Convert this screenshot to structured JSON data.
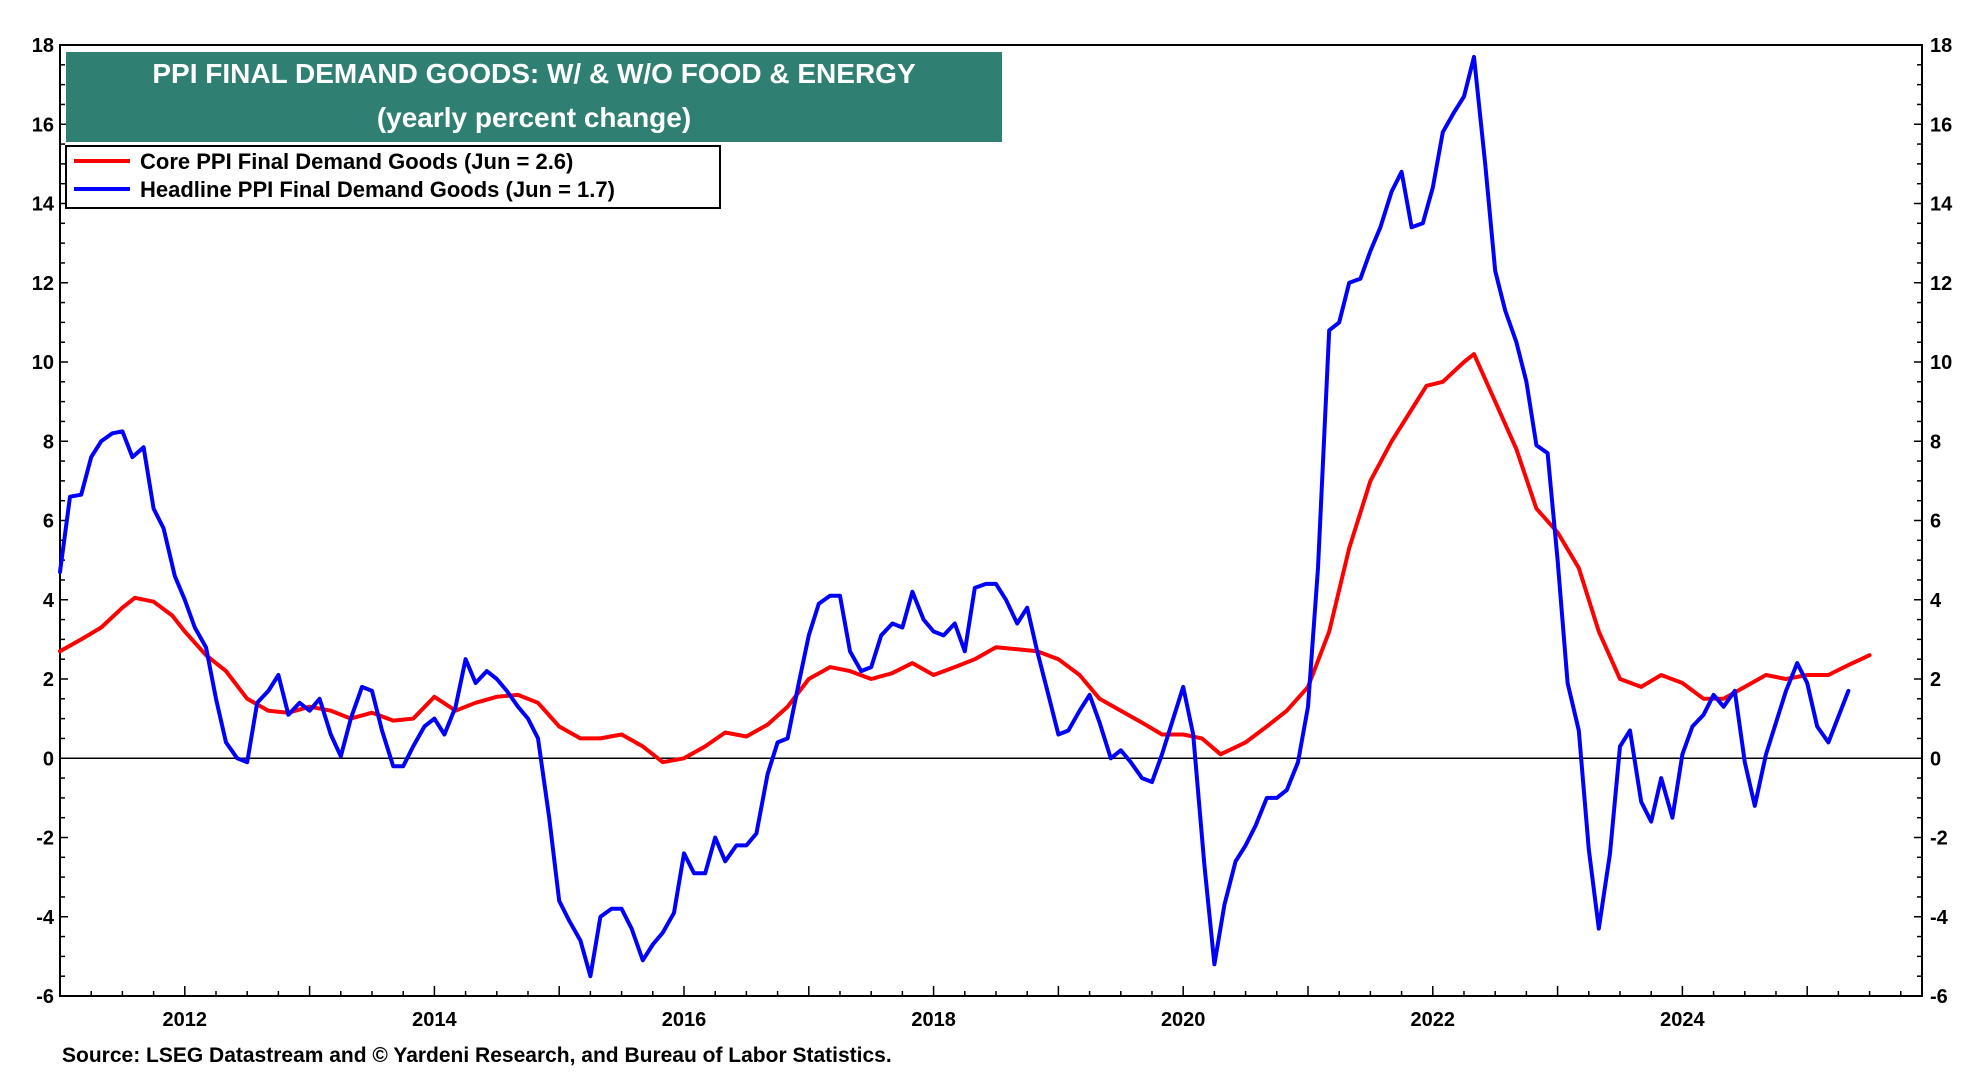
{
  "chart_data": {
    "type": "line",
    "title": "PPI FINAL DEMAND GOODS: W/ & W/O FOOD & ENERGY",
    "subtitle": "(yearly percent change)",
    "xlabel": "",
    "ylabel": "",
    "x_range": [
      2011.0,
      2025.92
    ],
    "ylim": [
      -6,
      18
    ],
    "y_ticks": [
      -6,
      -4,
      -2,
      0,
      2,
      4,
      6,
      8,
      10,
      12,
      14,
      16,
      18
    ],
    "y_tick_labels": [
      "-6",
      "-4",
      "-2",
      "0",
      "2",
      "4",
      "6",
      "8",
      "10",
      "12",
      "14",
      "16",
      "18"
    ],
    "x_ticks": [
      2012,
      2014,
      2016,
      2018,
      2020,
      2022,
      2024
    ],
    "x_tick_labels": [
      "2012",
      "2014",
      "2016",
      "2018",
      "2020",
      "2022",
      "2024"
    ],
    "zero_line": true,
    "grid": false,
    "legend_position": "top-left",
    "series": [
      {
        "name": "Core PPI Final Demand Goods (Jun = 2.6)",
        "color": "#ff0000",
        "points": [
          [
            2011.0,
            2.7
          ],
          [
            2011.17,
            3.0
          ],
          [
            2011.33,
            3.3
          ],
          [
            2011.5,
            3.8
          ],
          [
            2011.6,
            4.05
          ],
          [
            2011.75,
            3.95
          ],
          [
            2011.9,
            3.6
          ],
          [
            2012.0,
            3.2
          ],
          [
            2012.17,
            2.6
          ],
          [
            2012.33,
            2.2
          ],
          [
            2012.5,
            1.5
          ],
          [
            2012.67,
            1.2
          ],
          [
            2012.83,
            1.15
          ],
          [
            2013.0,
            1.3
          ],
          [
            2013.17,
            1.2
          ],
          [
            2013.33,
            1.0
          ],
          [
            2013.5,
            1.15
          ],
          [
            2013.67,
            0.95
          ],
          [
            2013.83,
            1.0
          ],
          [
            2014.0,
            1.55
          ],
          [
            2014.17,
            1.2
          ],
          [
            2014.33,
            1.4
          ],
          [
            2014.5,
            1.55
          ],
          [
            2014.67,
            1.6
          ],
          [
            2014.83,
            1.4
          ],
          [
            2015.0,
            0.8
          ],
          [
            2015.17,
            0.5
          ],
          [
            2015.33,
            0.5
          ],
          [
            2015.5,
            0.6
          ],
          [
            2015.67,
            0.3
          ],
          [
            2015.83,
            -0.1
          ],
          [
            2016.0,
            0.0
          ],
          [
            2016.17,
            0.3
          ],
          [
            2016.33,
            0.65
          ],
          [
            2016.5,
            0.55
          ],
          [
            2016.67,
            0.85
          ],
          [
            2016.83,
            1.3
          ],
          [
            2017.0,
            2.0
          ],
          [
            2017.17,
            2.3
          ],
          [
            2017.33,
            2.2
          ],
          [
            2017.5,
            2.0
          ],
          [
            2017.67,
            2.15
          ],
          [
            2017.83,
            2.4
          ],
          [
            2018.0,
            2.1
          ],
          [
            2018.17,
            2.3
          ],
          [
            2018.33,
            2.5
          ],
          [
            2018.5,
            2.8
          ],
          [
            2018.67,
            2.75
          ],
          [
            2018.83,
            2.7
          ],
          [
            2019.0,
            2.5
          ],
          [
            2019.17,
            2.1
          ],
          [
            2019.33,
            1.5
          ],
          [
            2019.5,
            1.2
          ],
          [
            2019.67,
            0.9
          ],
          [
            2019.83,
            0.6
          ],
          [
            2020.0,
            0.6
          ],
          [
            2020.15,
            0.5
          ],
          [
            2020.3,
            0.1
          ],
          [
            2020.5,
            0.4
          ],
          [
            2020.67,
            0.8
          ],
          [
            2020.83,
            1.2
          ],
          [
            2021.0,
            1.8
          ],
          [
            2021.17,
            3.2
          ],
          [
            2021.33,
            5.3
          ],
          [
            2021.5,
            7.0
          ],
          [
            2021.67,
            8.0
          ],
          [
            2021.83,
            8.8
          ],
          [
            2021.95,
            9.4
          ],
          [
            2022.08,
            9.5
          ],
          [
            2022.25,
            10.0
          ],
          [
            2022.33,
            10.2
          ],
          [
            2022.5,
            9.0
          ],
          [
            2022.67,
            7.8
          ],
          [
            2022.83,
            6.3
          ],
          [
            2023.0,
            5.7
          ],
          [
            2023.17,
            4.8
          ],
          [
            2023.33,
            3.2
          ],
          [
            2023.5,
            2.0
          ],
          [
            2023.67,
            1.8
          ],
          [
            2023.83,
            2.1
          ],
          [
            2024.0,
            1.9
          ],
          [
            2024.17,
            1.5
          ],
          [
            2024.33,
            1.5
          ],
          [
            2024.5,
            1.8
          ],
          [
            2024.67,
            2.1
          ],
          [
            2024.83,
            2.0
          ],
          [
            2025.0,
            2.1
          ],
          [
            2025.17,
            2.1
          ],
          [
            2025.33,
            2.35
          ],
          [
            2025.5,
            2.6
          ]
        ]
      },
      {
        "name": "Headline PPI Final Demand Goods (Jun = 1.7)",
        "color": "#0000ff",
        "points": [
          [
            2011.0,
            4.7
          ],
          [
            2011.08,
            6.6
          ],
          [
            2011.17,
            6.65
          ],
          [
            2011.25,
            7.6
          ],
          [
            2011.33,
            8.0
          ],
          [
            2011.42,
            8.2
          ],
          [
            2011.5,
            8.25
          ],
          [
            2011.58,
            7.6
          ],
          [
            2011.67,
            7.85
          ],
          [
            2011.75,
            6.3
          ],
          [
            2011.83,
            5.8
          ],
          [
            2011.92,
            4.6
          ],
          [
            2012.0,
            4.0
          ],
          [
            2012.08,
            3.3
          ],
          [
            2012.17,
            2.8
          ],
          [
            2012.25,
            1.5
          ],
          [
            2012.33,
            0.4
          ],
          [
            2012.42,
            0.0
          ],
          [
            2012.5,
            -0.1
          ],
          [
            2012.58,
            1.4
          ],
          [
            2012.67,
            1.7
          ],
          [
            2012.75,
            2.1
          ],
          [
            2012.83,
            1.1
          ],
          [
            2012.92,
            1.4
          ],
          [
            2013.0,
            1.2
          ],
          [
            2013.08,
            1.5
          ],
          [
            2013.17,
            0.6
          ],
          [
            2013.25,
            0.05
          ],
          [
            2013.33,
            1.0
          ],
          [
            2013.42,
            1.8
          ],
          [
            2013.5,
            1.7
          ],
          [
            2013.58,
            0.7
          ],
          [
            2013.67,
            -0.2
          ],
          [
            2013.75,
            -0.2
          ],
          [
            2013.83,
            0.3
          ],
          [
            2013.92,
            0.8
          ],
          [
            2014.0,
            1.0
          ],
          [
            2014.08,
            0.6
          ],
          [
            2014.17,
            1.3
          ],
          [
            2014.25,
            2.5
          ],
          [
            2014.33,
            1.9
          ],
          [
            2014.42,
            2.2
          ],
          [
            2014.5,
            2.0
          ],
          [
            2014.58,
            1.7
          ],
          [
            2014.67,
            1.3
          ],
          [
            2014.75,
            1.0
          ],
          [
            2014.83,
            0.5
          ],
          [
            2014.92,
            -1.5
          ],
          [
            2015.0,
            -3.6
          ],
          [
            2015.08,
            -4.1
          ],
          [
            2015.17,
            -4.6
          ],
          [
            2015.25,
            -5.5
          ],
          [
            2015.33,
            -4.0
          ],
          [
            2015.42,
            -3.8
          ],
          [
            2015.5,
            -3.8
          ],
          [
            2015.58,
            -4.3
          ],
          [
            2015.67,
            -5.1
          ],
          [
            2015.75,
            -4.7
          ],
          [
            2015.83,
            -4.4
          ],
          [
            2015.92,
            -3.9
          ],
          [
            2016.0,
            -2.4
          ],
          [
            2016.08,
            -2.9
          ],
          [
            2016.17,
            -2.9
          ],
          [
            2016.25,
            -2.0
          ],
          [
            2016.33,
            -2.6
          ],
          [
            2016.42,
            -2.2
          ],
          [
            2016.5,
            -2.2
          ],
          [
            2016.58,
            -1.9
          ],
          [
            2016.67,
            -0.4
          ],
          [
            2016.75,
            0.4
          ],
          [
            2016.83,
            0.5
          ],
          [
            2016.92,
            1.9
          ],
          [
            2017.0,
            3.1
          ],
          [
            2017.08,
            3.9
          ],
          [
            2017.17,
            4.1
          ],
          [
            2017.25,
            4.1
          ],
          [
            2017.33,
            2.7
          ],
          [
            2017.42,
            2.2
          ],
          [
            2017.5,
            2.3
          ],
          [
            2017.58,
            3.1
          ],
          [
            2017.67,
            3.4
          ],
          [
            2017.75,
            3.3
          ],
          [
            2017.83,
            4.2
          ],
          [
            2017.92,
            3.5
          ],
          [
            2018.0,
            3.2
          ],
          [
            2018.08,
            3.1
          ],
          [
            2018.17,
            3.4
          ],
          [
            2018.25,
            2.7
          ],
          [
            2018.33,
            4.3
          ],
          [
            2018.42,
            4.4
          ],
          [
            2018.5,
            4.4
          ],
          [
            2018.58,
            4.0
          ],
          [
            2018.67,
            3.4
          ],
          [
            2018.75,
            3.8
          ],
          [
            2018.83,
            2.7
          ],
          [
            2018.92,
            1.6
          ],
          [
            2019.0,
            0.6
          ],
          [
            2019.08,
            0.7
          ],
          [
            2019.17,
            1.2
          ],
          [
            2019.25,
            1.6
          ],
          [
            2019.33,
            0.9
          ],
          [
            2019.42,
            0.0
          ],
          [
            2019.5,
            0.2
          ],
          [
            2019.58,
            -0.1
          ],
          [
            2019.67,
            -0.5
          ],
          [
            2019.75,
            -0.6
          ],
          [
            2019.83,
            0.1
          ],
          [
            2019.92,
            1.0
          ],
          [
            2020.0,
            1.8
          ],
          [
            2020.08,
            0.6
          ],
          [
            2020.17,
            -2.7
          ],
          [
            2020.25,
            -5.2
          ],
          [
            2020.33,
            -3.7
          ],
          [
            2020.42,
            -2.6
          ],
          [
            2020.5,
            -2.2
          ],
          [
            2020.58,
            -1.7
          ],
          [
            2020.67,
            -1.0
          ],
          [
            2020.75,
            -1.0
          ],
          [
            2020.83,
            -0.8
          ],
          [
            2020.92,
            -0.1
          ],
          [
            2021.0,
            1.3
          ],
          [
            2021.08,
            4.8
          ],
          [
            2021.17,
            10.8
          ],
          [
            2021.25,
            11.0
          ],
          [
            2021.33,
            12.0
          ],
          [
            2021.42,
            12.1
          ],
          [
            2021.5,
            12.8
          ],
          [
            2021.58,
            13.4
          ],
          [
            2021.67,
            14.3
          ],
          [
            2021.75,
            14.8
          ],
          [
            2021.83,
            13.4
          ],
          [
            2021.92,
            13.5
          ],
          [
            2022.0,
            14.4
          ],
          [
            2022.08,
            15.8
          ],
          [
            2022.17,
            16.3
          ],
          [
            2022.25,
            16.7
          ],
          [
            2022.33,
            17.7
          ],
          [
            2022.42,
            15.0
          ],
          [
            2022.5,
            12.3
          ],
          [
            2022.58,
            11.3
          ],
          [
            2022.67,
            10.5
          ],
          [
            2022.75,
            9.5
          ],
          [
            2022.83,
            7.9
          ],
          [
            2022.92,
            7.7
          ],
          [
            2023.0,
            5.0
          ],
          [
            2023.08,
            1.9
          ],
          [
            2023.17,
            0.7
          ],
          [
            2023.25,
            -2.3
          ],
          [
            2023.33,
            -4.3
          ],
          [
            2023.42,
            -2.4
          ],
          [
            2023.5,
            0.3
          ],
          [
            2023.58,
            0.7
          ],
          [
            2023.67,
            -1.1
          ],
          [
            2023.75,
            -1.6
          ],
          [
            2023.83,
            -0.5
          ],
          [
            2023.92,
            -1.5
          ],
          [
            2024.0,
            0.1
          ],
          [
            2024.08,
            0.8
          ],
          [
            2024.17,
            1.1
          ],
          [
            2024.25,
            1.6
          ],
          [
            2024.33,
            1.3
          ],
          [
            2024.42,
            1.7
          ],
          [
            2024.5,
            -0.1
          ],
          [
            2024.58,
            -1.2
          ],
          [
            2024.67,
            0.1
          ],
          [
            2024.75,
            0.9
          ],
          [
            2024.83,
            1.7
          ],
          [
            2024.92,
            2.4
          ],
          [
            2025.0,
            1.9
          ],
          [
            2025.08,
            0.8
          ],
          [
            2025.17,
            0.4
          ],
          [
            2025.33,
            1.7
          ]
        ]
      }
    ],
    "source": "Source: LSEG Datastream and © Yardeni Research, and Bureau of Labor Statistics."
  },
  "colors": {
    "title_bg": "#2f7f72",
    "title_text": "#ffffff",
    "axis": "#000000"
  }
}
